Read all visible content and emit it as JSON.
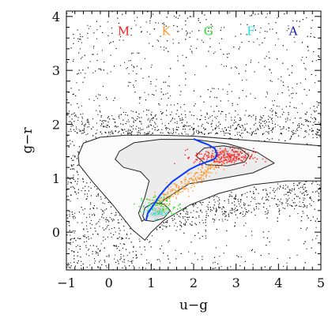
{
  "chart_data": {
    "type": "scatter",
    "title": "",
    "xlabel": "u−g",
    "ylabel": "g−r",
    "xlim": [
      -1,
      5
    ],
    "ylim": [
      -0.7,
      4.1
    ],
    "grid": false,
    "x_ticks": [
      {
        "value": -1,
        "label": "−1"
      },
      {
        "value": 0,
        "label": "0"
      },
      {
        "value": 1,
        "label": "1"
      },
      {
        "value": 2,
        "label": "2"
      },
      {
        "value": 3,
        "label": "3"
      },
      {
        "value": 4,
        "label": "4"
      },
      {
        "value": 5,
        "label": "5"
      }
    ],
    "y_ticks": [
      {
        "value": 0,
        "label": "0"
      },
      {
        "value": 1,
        "label": "1"
      },
      {
        "value": 2,
        "label": "2"
      },
      {
        "value": 3,
        "label": "3"
      },
      {
        "value": 4,
        "label": "4"
      }
    ],
    "spectral_classes": [
      {
        "label": "M",
        "x": 0.35,
        "y": 3.65,
        "color": "#ff2020"
      },
      {
        "label": "K",
        "x": 1.35,
        "y": 3.65,
        "color": "#ff9a2e"
      },
      {
        "label": "G",
        "x": 2.35,
        "y": 3.65,
        "color": "#22dd22"
      },
      {
        "label": "F",
        "x": 3.35,
        "y": 3.65,
        "color": "#22e0e0"
      },
      {
        "label": "A",
        "x": 4.35,
        "y": 3.65,
        "color": "#1a1aa8"
      }
    ],
    "stellar_locus": {
      "color": "#0a3cff",
      "x": [
        0.88,
        0.92,
        1.05,
        1.2,
        1.35,
        1.5,
        1.7,
        1.9,
        2.1,
        2.3,
        2.45,
        2.52,
        2.55,
        2.5,
        2.35,
        2.15,
        2.0
      ],
      "y": [
        0.22,
        0.35,
        0.5,
        0.68,
        0.82,
        0.94,
        1.05,
        1.16,
        1.24,
        1.3,
        1.34,
        1.38,
        1.45,
        1.55,
        1.62,
        1.68,
        1.73
      ]
    },
    "contours": [
      {
        "level": "outer",
        "x": [
          -0.72,
          -0.6,
          -0.2,
          0.4,
          1.2,
          2.0,
          3.0,
          4.0,
          5.0,
          5.0,
          4.2,
          3.4,
          2.6,
          1.9,
          1.3,
          1.0,
          0.85,
          0.55,
          0.1,
          -0.4,
          -0.7,
          -0.72
        ],
        "y": [
          1.42,
          1.65,
          1.76,
          1.8,
          1.8,
          1.78,
          1.72,
          1.66,
          1.6,
          0.95,
          0.95,
          0.88,
          0.72,
          0.5,
          0.22,
          0.0,
          -0.15,
          0.05,
          0.5,
          0.95,
          1.25,
          1.42
        ]
      },
      {
        "level": "middle",
        "x": [
          0.15,
          0.25,
          0.6,
          1.2,
          2.0,
          2.8,
          3.5,
          3.9,
          3.4,
          2.7,
          1.9,
          1.3,
          1.0,
          0.78,
          0.7,
          0.85,
          0.95,
          0.75,
          0.35,
          0.15
        ],
        "y": [
          1.35,
          1.5,
          1.66,
          1.72,
          1.72,
          1.64,
          1.48,
          1.28,
          1.1,
          1.0,
          0.9,
          0.6,
          0.32,
          0.2,
          0.35,
          0.65,
          0.95,
          1.12,
          1.2,
          1.35
        ]
      },
      {
        "level": "inner-upper",
        "x": [
          2.05,
          2.25,
          2.7,
          3.1,
          3.3,
          3.2,
          2.8,
          2.3,
          2.05
        ],
        "y": [
          1.42,
          1.56,
          1.6,
          1.55,
          1.42,
          1.3,
          1.23,
          1.25,
          1.42
        ]
      },
      {
        "level": "inner-lower",
        "x": [
          0.8,
          0.85,
          1.05,
          1.3,
          1.45,
          1.3,
          1.05,
          0.85,
          0.8
        ],
        "y": [
          0.3,
          0.45,
          0.55,
          0.52,
          0.4,
          0.26,
          0.2,
          0.22,
          0.3
        ]
      }
    ],
    "point_clouds": [
      {
        "name": "",
        "color": "#111111",
        "role": "field-stars"
      },
      {
        "name": "",
        "color": "#ff2020",
        "role": "M",
        "center": [
          2.7,
          1.4
        ],
        "spread": [
          0.35,
          0.08
        ]
      },
      {
        "name": "",
        "color": "#ff9a2e",
        "role": "K",
        "center": [
          1.9,
          1.0
        ],
        "spread": [
          0.45,
          0.2
        ]
      },
      {
        "name": "",
        "color": "#22dd22",
        "role": "G",
        "center": [
          1.2,
          0.5
        ],
        "spread": [
          0.25,
          0.1
        ]
      },
      {
        "name": "",
        "color": "#22e0e0",
        "role": "F",
        "center": [
          1.05,
          0.38
        ],
        "spread": [
          0.15,
          0.06
        ]
      }
    ]
  }
}
